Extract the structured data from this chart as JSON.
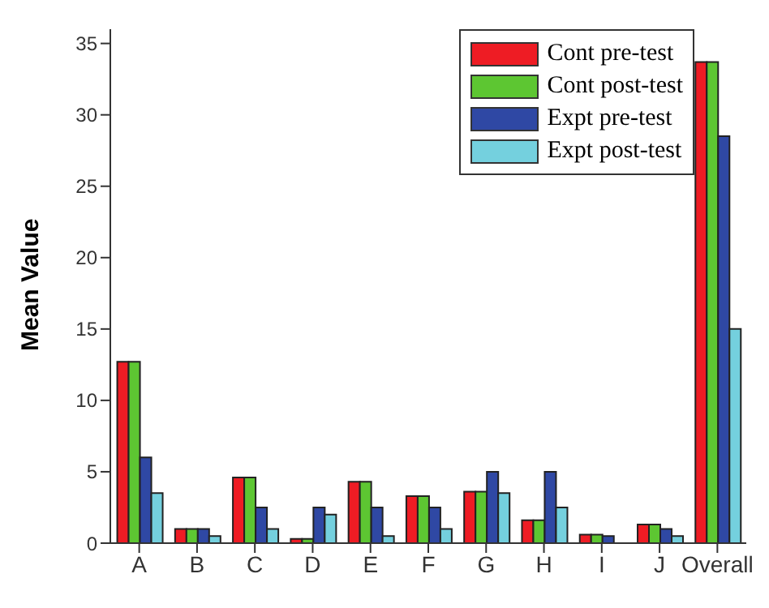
{
  "chart_data": {
    "type": "bar",
    "ylabel": "Mean Value",
    "categories": [
      "A",
      "B",
      "C",
      "D",
      "E",
      "F",
      "G",
      "H",
      "I",
      "J",
      "Overall"
    ],
    "series": [
      {
        "name": "Cont pre-test",
        "color": "#ee1c24",
        "values": [
          12.7,
          1,
          4.6,
          0.3,
          4.3,
          3.3,
          3.6,
          1.6,
          0.6,
          1.3,
          33.7
        ]
      },
      {
        "name": "Cont post-test",
        "color": "#5dc632",
        "values": [
          12.7,
          1,
          4.6,
          0.3,
          4.3,
          3.3,
          3.6,
          1.6,
          0.6,
          1.3,
          33.7
        ]
      },
      {
        "name": "Expt pre-test",
        "color": "#2f48a4",
        "values": [
          6,
          1,
          2.5,
          2.5,
          2.5,
          2.5,
          5,
          5,
          0.5,
          1,
          28.5
        ]
      },
      {
        "name": "Expt post-test",
        "color": "#74d0de",
        "values": [
          3.5,
          0.5,
          1,
          2,
          0.5,
          1,
          3.5,
          2.5,
          null,
          0.5,
          15
        ]
      }
    ],
    "ylim": [
      0,
      36
    ],
    "yticks": [
      0,
      5,
      10,
      15,
      20,
      25,
      30,
      35
    ],
    "grid": false,
    "legend": "top right"
  }
}
